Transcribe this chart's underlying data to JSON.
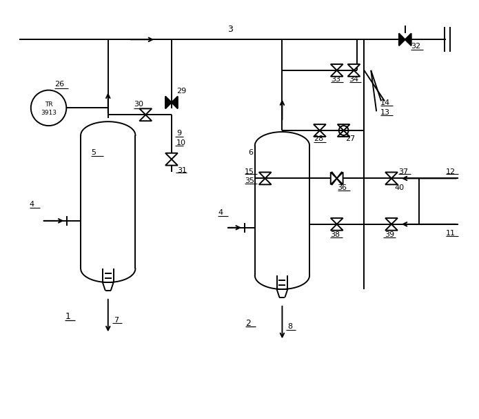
{
  "bg_color": "#ffffff",
  "lw": 1.4,
  "fig_width": 6.95,
  "fig_height": 6.07,
  "dpi": 100
}
